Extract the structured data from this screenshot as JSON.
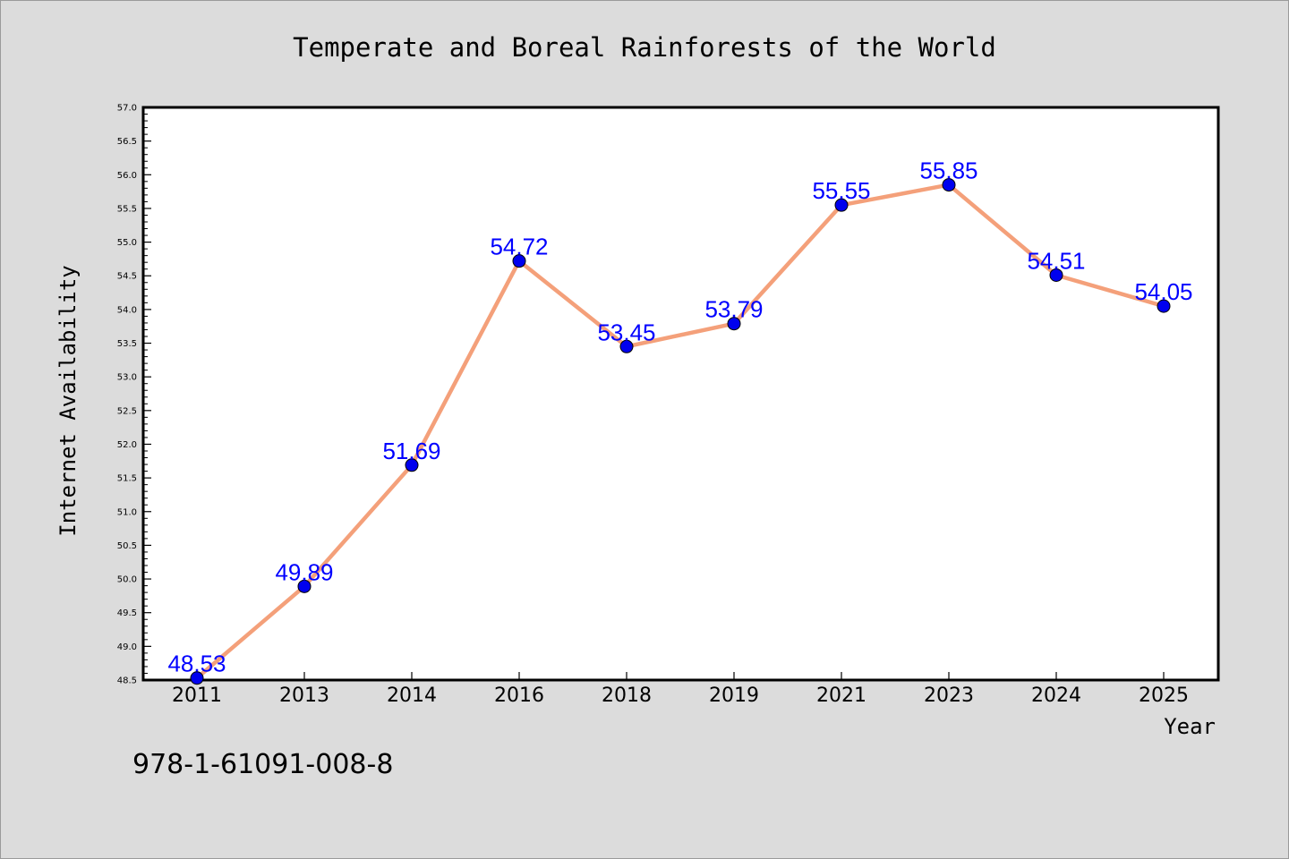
{
  "chart_data": {
    "type": "line",
    "title": "Temperate and Boreal Rainforests of the World",
    "xlabel": "Year",
    "ylabel": "Internet Availability",
    "categories": [
      "2011",
      "2013",
      "2014",
      "2016",
      "2018",
      "2019",
      "2021",
      "2023",
      "2024",
      "2025"
    ],
    "values": [
      48.53,
      49.89,
      51.69,
      54.72,
      53.45,
      53.79,
      55.55,
      55.85,
      54.51,
      54.05
    ],
    "data_labels": [
      "48.53",
      "49.89",
      "51.69",
      "54.72",
      "53.45",
      "53.79",
      "55.55",
      "55.85",
      "54.51",
      "54.05"
    ],
    "ylim": [
      48.5,
      57.0
    ],
    "yticks": [
      "48.5",
      "49.0",
      "49.5",
      "50.0",
      "50.5",
      "51.0",
      "51.5",
      "52.0",
      "52.5",
      "53.0",
      "53.5",
      "54.0",
      "54.5",
      "55.0",
      "55.5",
      "56.0",
      "56.5",
      "57.0"
    ],
    "grid": false,
    "legend": "none",
    "line_color": "#f4a07a",
    "marker_color": "#0000ee",
    "label_color": "#0000ff"
  },
  "footer_text": "978-1-61091-008-8"
}
